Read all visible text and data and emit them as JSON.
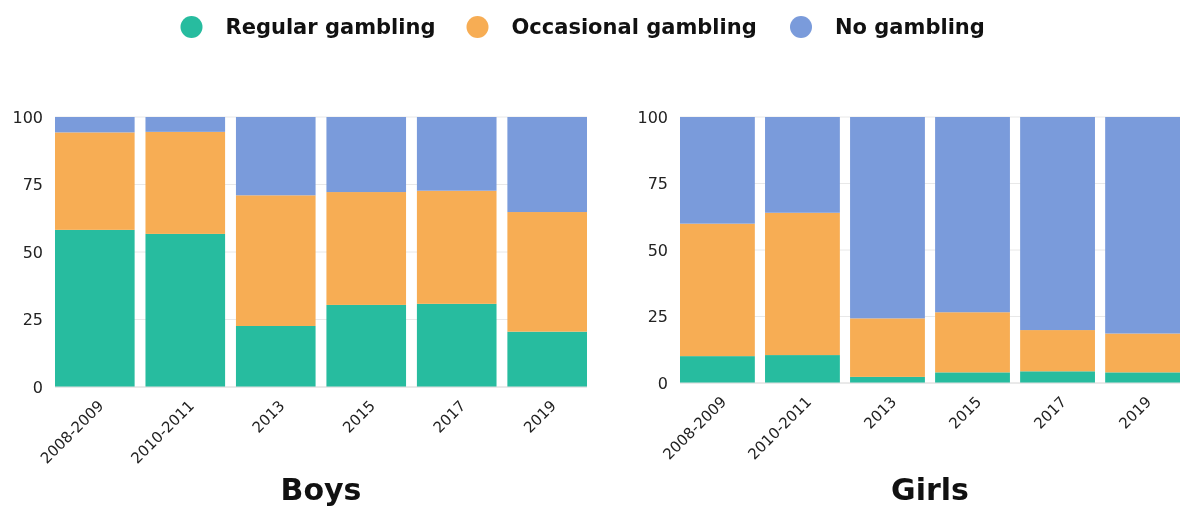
{
  "chart_data": [
    {
      "type": "bar",
      "stacked": true,
      "xlabel": "Boys",
      "legend": "top",
      "grid": "y",
      "categories": [
        "2008-2009",
        "2010-2011",
        "2013",
        "2015",
        "2017",
        "2019"
      ],
      "ylim": [
        0,
        100
      ],
      "yticks": [
        0,
        25,
        50,
        75,
        100
      ],
      "series": [
        {
          "name": "Regular gambling",
          "color": "#27bc9f",
          "values": [
            58.2,
            56.7,
            22.6,
            30.4,
            30.8,
            20.5
          ]
        },
        {
          "name": "Occasional gambling",
          "color": "#f7ad54",
          "values": [
            36.1,
            37.8,
            48.4,
            41.8,
            41.9,
            44.3
          ]
        },
        {
          "name": "No gambling",
          "color": "#7a9bdb",
          "values": [
            5.7,
            5.5,
            29.0,
            27.8,
            27.3,
            35.2
          ]
        }
      ]
    },
    {
      "type": "bar",
      "stacked": true,
      "xlabel": "Girls",
      "grid": "y",
      "categories": [
        "2008-2009",
        "2010-2011",
        "2013",
        "2015",
        "2017",
        "2019"
      ],
      "ylim": [
        0,
        100
      ],
      "yticks": [
        0,
        25,
        50,
        75,
        100
      ],
      "series": [
        {
          "color": "#27bc9f",
          "values": [
            10.1,
            10.5,
            2.3,
            4.0,
            4.4,
            4.0
          ]
        },
        {
          "color": "#f7ad54",
          "values": [
            49.8,
            53.5,
            22.0,
            22.6,
            15.5,
            14.6
          ]
        },
        {
          "color": "#7a9bdb",
          "values": [
            40.1,
            36.0,
            75.7,
            73.4,
            80.1,
            81.4
          ]
        }
      ]
    }
  ]
}
